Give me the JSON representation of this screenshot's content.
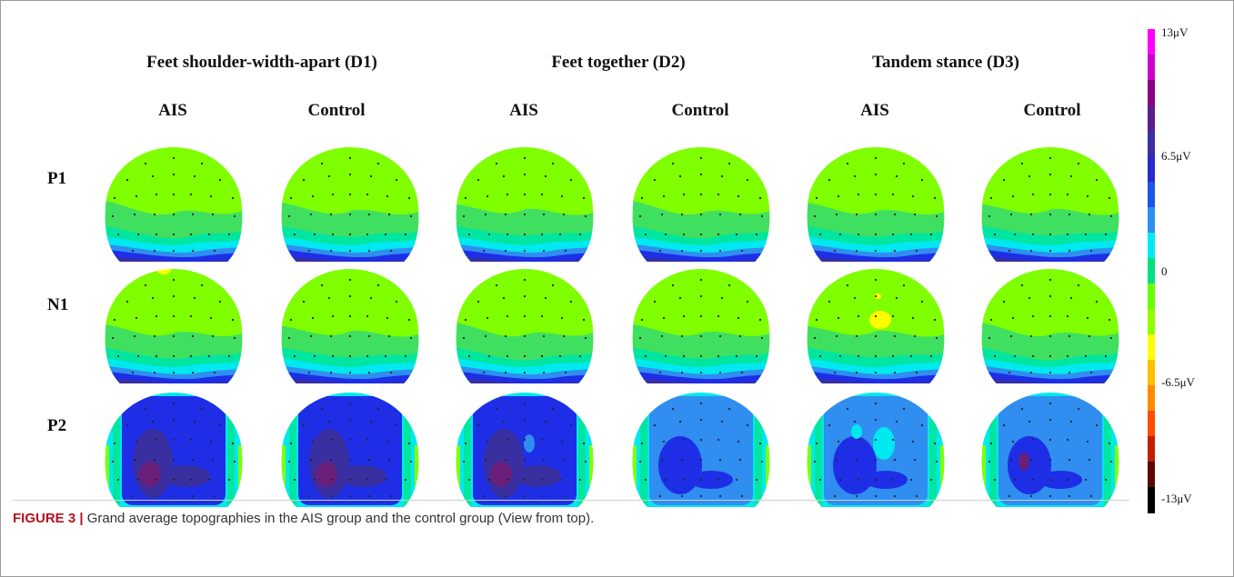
{
  "figure": {
    "conditions": [
      "Feet shoulder-width-apart (D1)",
      "Feet together (D2)",
      "Tandem stance (D3)"
    ],
    "groups": [
      "AIS",
      "Control",
      "AIS",
      "Control",
      "AIS",
      "Control"
    ],
    "rows": [
      "P1",
      "N1",
      "P2"
    ],
    "colorbar": {
      "labels": [
        "13μV",
        "6.5μV",
        "0",
        "-6.5μV",
        "-13μV"
      ],
      "colors": [
        "#ff00ff",
        "#cc00cc",
        "#8a0080",
        "#5a1f8c",
        "#3a2fa0",
        "#2a2ac8",
        "#1e55e6",
        "#2f8ef0",
        "#00eaf0",
        "#00e080",
        "#66ff00",
        "#90ff00",
        "#ffff00",
        "#ffc000",
        "#ff8a00",
        "#ff4c00",
        "#c02000",
        "#5a0a00",
        "#000000"
      ]
    },
    "map_colors": {
      "background": "#7fff00",
      "midgreen": "#3fe060",
      "teal": "#00e6a0",
      "cyan": "#00e8f0",
      "lightblue": "#2f8ef0",
      "blue": "#1e2ee6",
      "darkblue": "#3a2fa0",
      "purple": "#6a1f7a",
      "yellow": "#ffff00"
    },
    "caption_label": "FIGURE 3 |",
    "caption_text": " Grand average topographies in the AIS group and the control group (View from top)."
  }
}
